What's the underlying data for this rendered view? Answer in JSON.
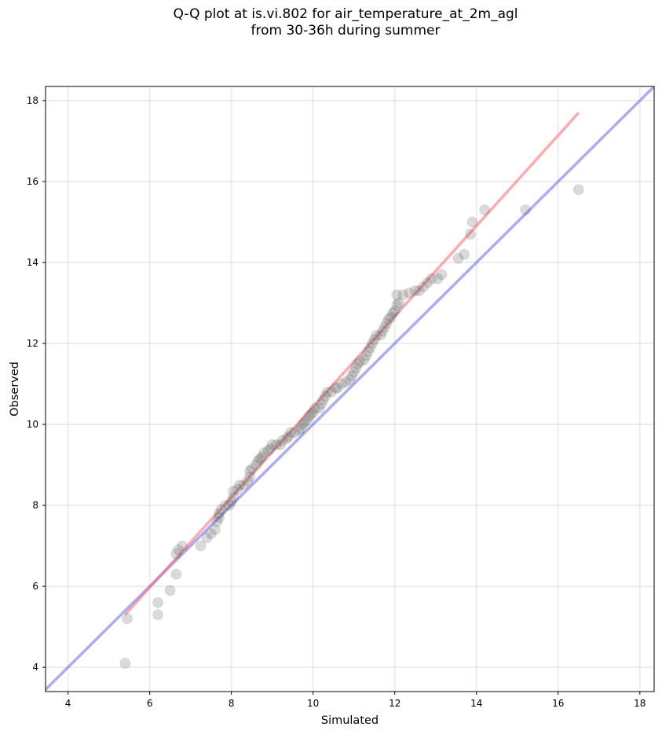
{
  "chart_data": {
    "type": "scatter",
    "title": "Q-Q plot at is.vi.802 for air_temperature_at_2m_agl",
    "subtitle": "from 30-36h during summer",
    "xlabel": "Simulated",
    "ylabel": "Observed",
    "xlim": [
      3.45,
      18.35
    ],
    "ylim": [
      3.4,
      18.35
    ],
    "xticks": [
      4,
      6,
      8,
      10,
      12,
      14,
      16,
      18
    ],
    "yticks": [
      4,
      6,
      8,
      10,
      12,
      14,
      16,
      18
    ],
    "grid": true,
    "points": [
      [
        5.4,
        4.1
      ],
      [
        5.45,
        5.2
      ],
      [
        6.2,
        5.3
      ],
      [
        6.2,
        5.6
      ],
      [
        6.5,
        5.9
      ],
      [
        6.65,
        6.3
      ],
      [
        6.65,
        6.8
      ],
      [
        6.7,
        6.9
      ],
      [
        6.8,
        7.0
      ],
      [
        7.25,
        7.0
      ],
      [
        7.4,
        7.2
      ],
      [
        7.5,
        7.3
      ],
      [
        7.6,
        7.4
      ],
      [
        7.65,
        7.6
      ],
      [
        7.7,
        7.7
      ],
      [
        7.7,
        7.8
      ],
      [
        7.75,
        7.9
      ],
      [
        7.85,
        8.0
      ],
      [
        7.95,
        8.0
      ],
      [
        8.0,
        8.1
      ],
      [
        8.05,
        8.2
      ],
      [
        8.05,
        8.35
      ],
      [
        8.15,
        8.4
      ],
      [
        8.2,
        8.5
      ],
      [
        8.3,
        8.5
      ],
      [
        8.4,
        8.6
      ],
      [
        8.45,
        8.7
      ],
      [
        8.45,
        8.85
      ],
      [
        8.5,
        8.9
      ],
      [
        8.6,
        9.0
      ],
      [
        8.65,
        9.1
      ],
      [
        8.7,
        9.15
      ],
      [
        8.75,
        9.2
      ],
      [
        8.8,
        9.3
      ],
      [
        8.9,
        9.35
      ],
      [
        8.95,
        9.4
      ],
      [
        9.0,
        9.5
      ],
      [
        9.1,
        9.5
      ],
      [
        9.2,
        9.5
      ],
      [
        9.25,
        9.6
      ],
      [
        9.35,
        9.65
      ],
      [
        9.4,
        9.7
      ],
      [
        9.45,
        9.8
      ],
      [
        9.55,
        9.8
      ],
      [
        9.65,
        9.85
      ],
      [
        9.7,
        9.9
      ],
      [
        9.75,
        10.0
      ],
      [
        9.8,
        10.05
      ],
      [
        9.85,
        10.1
      ],
      [
        9.9,
        10.2
      ],
      [
        9.95,
        10.25
      ],
      [
        10.0,
        10.3
      ],
      [
        10.05,
        10.4
      ],
      [
        10.15,
        10.4
      ],
      [
        10.2,
        10.5
      ],
      [
        10.25,
        10.6
      ],
      [
        10.3,
        10.7
      ],
      [
        10.35,
        10.8
      ],
      [
        10.45,
        10.8
      ],
      [
        10.55,
        10.9
      ],
      [
        10.6,
        10.9
      ],
      [
        10.7,
        11.0
      ],
      [
        10.8,
        11.05
      ],
      [
        10.9,
        11.1
      ],
      [
        10.95,
        11.2
      ],
      [
        11.0,
        11.3
      ],
      [
        11.05,
        11.4
      ],
      [
        11.1,
        11.5
      ],
      [
        11.15,
        11.55
      ],
      [
        11.25,
        11.6
      ],
      [
        11.3,
        11.7
      ],
      [
        11.35,
        11.8
      ],
      [
        11.4,
        11.9
      ],
      [
        11.45,
        12.0
      ],
      [
        11.5,
        12.1
      ],
      [
        11.55,
        12.2
      ],
      [
        11.65,
        12.2
      ],
      [
        11.7,
        12.3
      ],
      [
        11.75,
        12.4
      ],
      [
        11.8,
        12.5
      ],
      [
        11.85,
        12.6
      ],
      [
        11.9,
        12.65
      ],
      [
        11.95,
        12.75
      ],
      [
        12.0,
        12.8
      ],
      [
        12.05,
        12.95
      ],
      [
        12.1,
        13.0
      ],
      [
        12.05,
        13.2
      ],
      [
        12.2,
        13.2
      ],
      [
        12.35,
        13.25
      ],
      [
        12.5,
        13.3
      ],
      [
        12.6,
        13.3
      ],
      [
        12.7,
        13.4
      ],
      [
        12.8,
        13.5
      ],
      [
        12.9,
        13.6
      ],
      [
        13.05,
        13.6
      ],
      [
        13.15,
        13.7
      ],
      [
        13.55,
        14.1
      ],
      [
        13.7,
        14.2
      ],
      [
        13.85,
        14.7
      ],
      [
        13.9,
        15.0
      ],
      [
        14.2,
        15.3
      ],
      [
        15.2,
        15.3
      ],
      [
        16.5,
        15.8
      ]
    ],
    "fit_line": {
      "x": [
        5.4,
        16.5
      ],
      "y": [
        5.3,
        17.7
      ],
      "color": "#ff6666"
    },
    "identity_line": {
      "color": "#6666ee"
    },
    "point_color": "#555555"
  }
}
